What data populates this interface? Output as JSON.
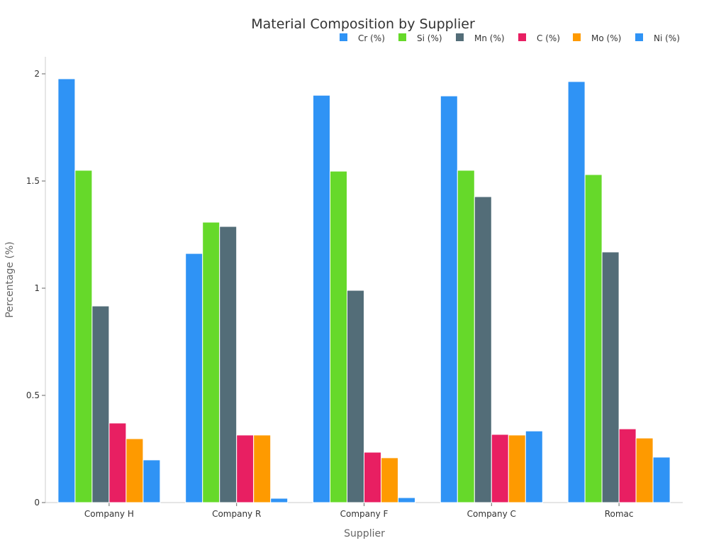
{
  "chart_data": {
    "type": "bar",
    "title": "Material Composition by Supplier",
    "xlabel": "Supplier",
    "ylabel": "Percentage (%)",
    "ylim": [
      0,
      2.08
    ],
    "yticks": [
      0,
      0.5,
      1,
      1.5,
      2
    ],
    "ytick_labels": [
      "0",
      "0.5",
      "1",
      "1.5",
      "2"
    ],
    "grid": false,
    "legend_position": "top-right",
    "categories": [
      "Company H",
      "Company R",
      "Company F",
      "Company C",
      "Romac"
    ],
    "series": [
      {
        "name": "Cr (%)",
        "color": "#2f93f5",
        "values": [
          1.977,
          1.162,
          1.9,
          1.897,
          1.964
        ]
      },
      {
        "name": "Si (%)",
        "color": "#66d92a",
        "values": [
          1.55,
          1.308,
          1.546,
          1.55,
          1.53
        ]
      },
      {
        "name": "Mn (%)",
        "color": "#536d78",
        "values": [
          0.917,
          1.288,
          0.99,
          1.427,
          1.169
        ]
      },
      {
        "name": "C (%)",
        "color": "#e81f62",
        "values": [
          0.371,
          0.315,
          0.235,
          0.318,
          0.344
        ]
      },
      {
        "name": "Mo (%)",
        "color": "#fe9a00",
        "values": [
          0.298,
          0.315,
          0.209,
          0.315,
          0.301
        ]
      },
      {
        "name": "Ni (%)",
        "color": "#2f93f5",
        "values": [
          0.199,
          0.02,
          0.023,
          0.334,
          0.212
        ]
      }
    ]
  }
}
